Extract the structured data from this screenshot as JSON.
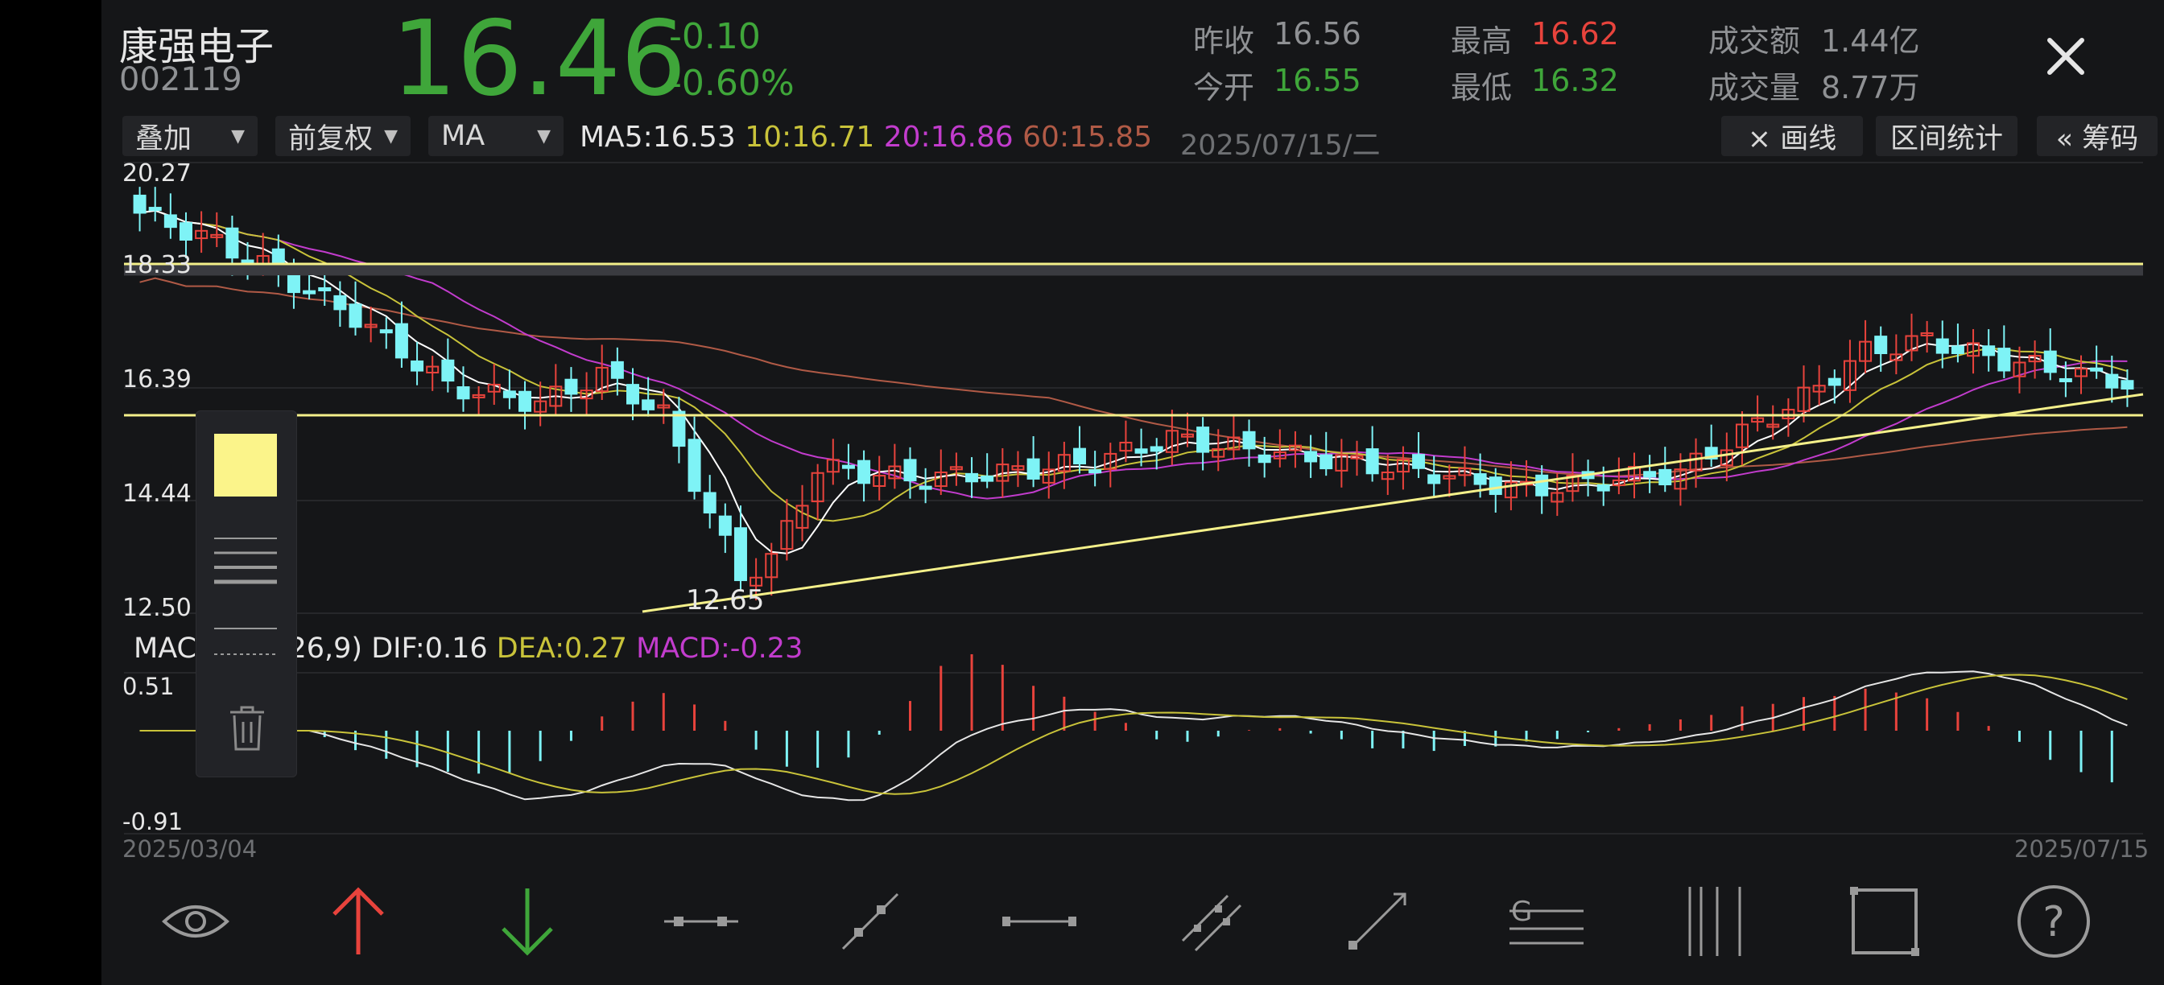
{
  "stock": {
    "name": "康强电子",
    "code": "002119",
    "price": "16.46",
    "change": "-0.10",
    "change_pct": "-0.60%"
  },
  "stats": {
    "prev_close_label": "昨收",
    "prev_close": "16.56",
    "open_label": "今开",
    "open": "16.55",
    "high_label": "最高",
    "high": "16.62",
    "low_label": "最低",
    "low": "16.32",
    "amount_label": "成交额",
    "amount": "1.44亿",
    "volume_label": "成交量",
    "volume": "8.77万"
  },
  "toolbar": {
    "overlay": "叠加",
    "adjust": "前复权",
    "indicator": "MA",
    "ma5_label": "MA5:",
    "ma5": "16.53",
    "ma10_label": "10:",
    "ma10": "16.71",
    "ma20_label": "20:",
    "ma20": "16.86",
    "ma60_label": "60:",
    "ma60": "15.85",
    "date": "2025/07/15/二",
    "draw_line": "× 画线",
    "range_stats": "区间统计",
    "chips": "« 筹码"
  },
  "price_axis": {
    "top": "20.27",
    "l2": "18.33",
    "l3": "16.39",
    "l4": "14.44",
    "bottom": "12.50"
  },
  "low_label": "12.65",
  "macd": {
    "label": "MAC",
    "params": "2,26,9)",
    "dif_label": "DIF:",
    "dif": "0.16",
    "dea_label": "DEA:",
    "dea": "0.27",
    "macd_label": "MACD:",
    "macd": "-0.23",
    "top": "0.51",
    "bottom": "-0.91"
  },
  "dates": {
    "start": "2025/03/04",
    "end": "2025/07/15"
  },
  "colors": {
    "up": "#e8433c",
    "down": "#7ef3f6",
    "ma5": "#ffffff",
    "ma10": "#c9c33a",
    "ma20": "#c23ccd",
    "ma60": "#b05a46",
    "line": "#f4f08a"
  },
  "icons": [
    "eye-icon",
    "arrow-up-icon",
    "arrow-down-icon",
    "segment-icon",
    "line-icon",
    "horizontal-line-icon",
    "parallel-lines-icon",
    "ray-icon",
    "gann-icon",
    "vertical-lines-icon",
    "rectangle-icon",
    "help-icon"
  ],
  "popup_icons": [
    "color-swatch-icon",
    "line-width-icon",
    "line-style-icon",
    "delete-icon"
  ]
}
